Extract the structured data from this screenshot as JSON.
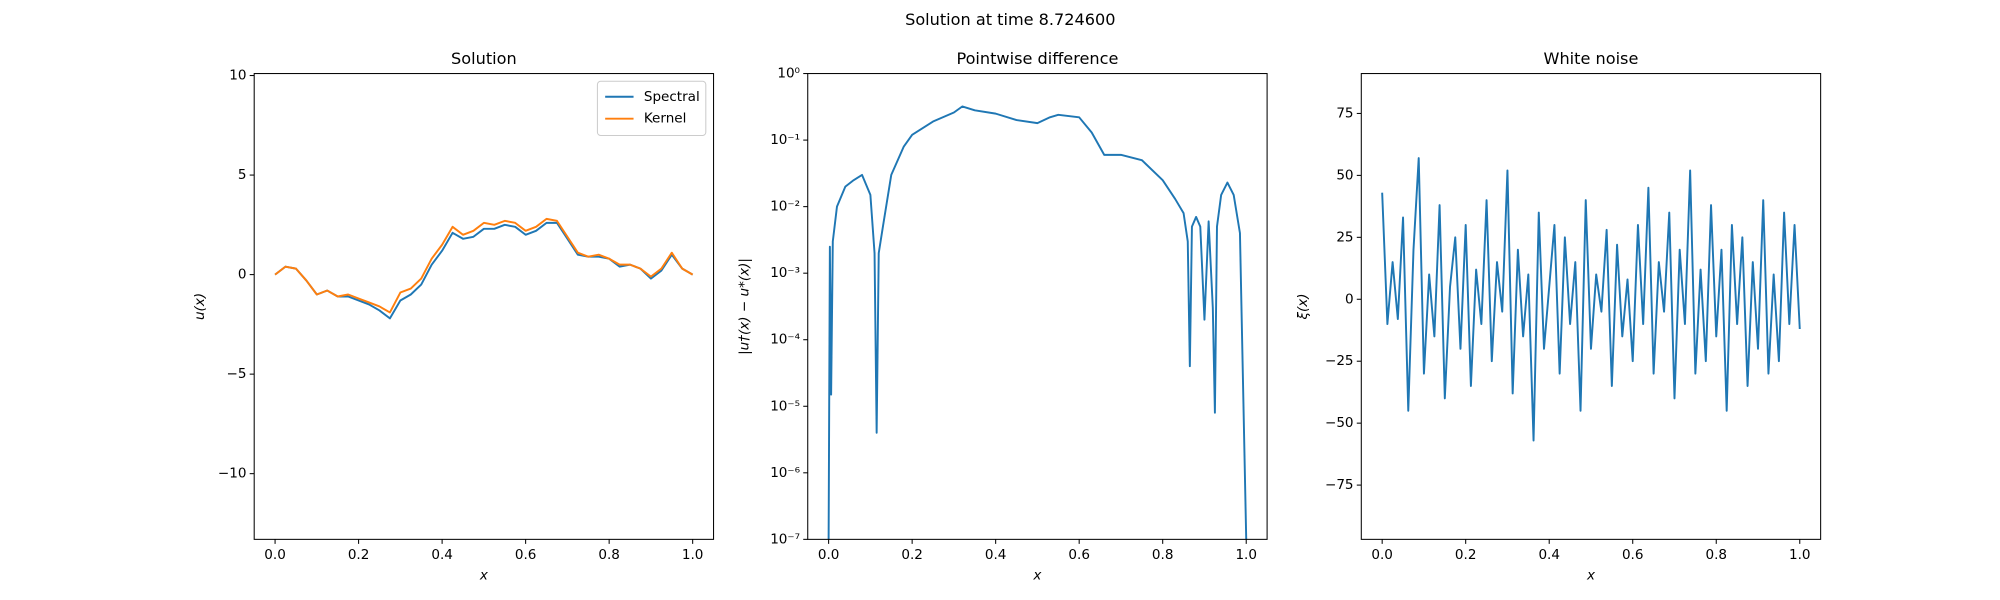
{
  "title": "Solution at time 8.724600",
  "chart_data": [
    {
      "type": "line",
      "title": "Solution",
      "xlabel": "x",
      "ylabel": "u(x)",
      "x": [
        0,
        0.025,
        0.05,
        0.075,
        0.1,
        0.125,
        0.15,
        0.175,
        0.2,
        0.225,
        0.25,
        0.275,
        0.3,
        0.325,
        0.35,
        0.375,
        0.4,
        0.425,
        0.45,
        0.475,
        0.5,
        0.525,
        0.55,
        0.575,
        0.6,
        0.625,
        0.65,
        0.675,
        0.7,
        0.725,
        0.75,
        0.775,
        0.8,
        0.825,
        0.85,
        0.875,
        0.9,
        0.925,
        0.95,
        0.975,
        1
      ],
      "series": [
        {
          "name": "Spectral",
          "color": "#1f77b4",
          "values": [
            0,
            0.4,
            0.3,
            -0.3,
            -1.0,
            -0.8,
            -1.1,
            -1.1,
            -1.3,
            -1.5,
            -1.8,
            -2.2,
            -1.3,
            -1.0,
            -0.5,
            0.5,
            1.2,
            2.1,
            1.8,
            1.9,
            2.3,
            2.3,
            2.5,
            2.4,
            2.0,
            2.2,
            2.6,
            2.6,
            1.8,
            1.0,
            0.9,
            0.9,
            0.8,
            0.4,
            0.5,
            0.3,
            -0.2,
            0.2,
            1.0,
            0.3,
            0
          ]
        },
        {
          "name": "Kernel",
          "color": "#ff7f0e",
          "values": [
            0,
            0.4,
            0.3,
            -0.3,
            -1.0,
            -0.8,
            -1.1,
            -1.0,
            -1.2,
            -1.4,
            -1.6,
            -1.9,
            -0.9,
            -0.7,
            -0.2,
            0.8,
            1.5,
            2.4,
            2.0,
            2.2,
            2.6,
            2.5,
            2.7,
            2.6,
            2.2,
            2.4,
            2.8,
            2.7,
            1.9,
            1.1,
            0.9,
            1.0,
            0.8,
            0.5,
            0.5,
            0.3,
            -0.1,
            0.3,
            1.1,
            0.3,
            0
          ]
        }
      ],
      "xlim": [
        -0.05,
        1.05
      ],
      "ylim": [
        -13.3,
        10.1
      ],
      "xticks": [
        {
          "value": 0,
          "label": "0.0"
        },
        {
          "value": 0.2,
          "label": "0.2"
        },
        {
          "value": 0.4,
          "label": "0.4"
        },
        {
          "value": 0.6,
          "label": "0.6"
        },
        {
          "value": 0.8,
          "label": "0.8"
        },
        {
          "value": 1,
          "label": "1.0"
        }
      ],
      "yticks": [
        {
          "value": -10,
          "label": "−10"
        },
        {
          "value": -5,
          "label": "−5"
        },
        0,
        5,
        10
      ],
      "legend": "upper right"
    },
    {
      "type": "line",
      "title": "Pointwise difference",
      "xlabel": "x",
      "ylabel": "|u†(x) − u*(x)|",
      "yscale": "log",
      "x": [
        0,
        0.003,
        0.006,
        0.01,
        0.02,
        0.04,
        0.06,
        0.08,
        0.1,
        0.11,
        0.115,
        0.12,
        0.13,
        0.15,
        0.18,
        0.2,
        0.25,
        0.3,
        0.32,
        0.35,
        0.4,
        0.45,
        0.5,
        0.53,
        0.55,
        0.6,
        0.63,
        0.66,
        0.7,
        0.75,
        0.8,
        0.83,
        0.85,
        0.86,
        0.865,
        0.87,
        0.88,
        0.89,
        0.9,
        0.91,
        0.92,
        0.925,
        0.93,
        0.94,
        0.955,
        0.97,
        0.985,
        1
      ],
      "series": [
        {
          "color": "#1f77b4",
          "values": [
            1e-07,
            0.0025,
            1.5e-05,
            0.003,
            0.01,
            0.02,
            0.025,
            0.03,
            0.015,
            0.002,
            4e-06,
            0.002,
            0.005,
            0.03,
            0.08,
            0.12,
            0.19,
            0.26,
            0.32,
            0.28,
            0.25,
            0.2,
            0.18,
            0.22,
            0.24,
            0.22,
            0.13,
            0.06,
            0.06,
            0.05,
            0.025,
            0.013,
            0.008,
            0.003,
            4e-05,
            0.005,
            0.007,
            0.005,
            0.0002,
            0.006,
            0.0003,
            8e-06,
            0.005,
            0.015,
            0.023,
            0.015,
            0.004,
            1e-07
          ]
        }
      ],
      "xlim": [
        -0.05,
        1.05
      ],
      "ylim": [
        1e-07,
        1
      ],
      "xticks": [
        {
          "value": 0,
          "label": "0.0"
        },
        {
          "value": 0.2,
          "label": "0.2"
        },
        {
          "value": 0.4,
          "label": "0.4"
        },
        {
          "value": 0.6,
          "label": "0.6"
        },
        {
          "value": 0.8,
          "label": "0.8"
        },
        {
          "value": 1,
          "label": "1.0"
        }
      ],
      "yticks": [
        {
          "value": 1e-07,
          "label": "10⁻⁷"
        },
        {
          "value": 1e-06,
          "label": "10⁻⁶"
        },
        {
          "value": 1e-05,
          "label": "10⁻⁵"
        },
        {
          "value": 0.0001,
          "label": "10⁻⁴"
        },
        {
          "value": 0.001,
          "label": "10⁻³"
        },
        {
          "value": 0.01,
          "label": "10⁻²"
        },
        {
          "value": 0.1,
          "label": "10⁻¹"
        },
        {
          "value": 1,
          "label": "10⁰"
        }
      ]
    },
    {
      "type": "line",
      "title": "White noise",
      "xlabel": "x",
      "ylabel": "ξ(x)",
      "x": [
        0,
        0.0125,
        0.025,
        0.0375,
        0.05,
        0.0625,
        0.075,
        0.0875,
        0.1,
        0.1125,
        0.125,
        0.1375,
        0.15,
        0.1625,
        0.175,
        0.1875,
        0.2,
        0.2125,
        0.225,
        0.2375,
        0.25,
        0.2625,
        0.275,
        0.2875,
        0.3,
        0.3125,
        0.325,
        0.3375,
        0.35,
        0.3625,
        0.375,
        0.3875,
        0.4,
        0.4125,
        0.425,
        0.4375,
        0.45,
        0.4625,
        0.475,
        0.4875,
        0.5,
        0.5125,
        0.525,
        0.5375,
        0.55,
        0.5625,
        0.575,
        0.5875,
        0.6,
        0.6125,
        0.625,
        0.6375,
        0.65,
        0.6625,
        0.675,
        0.6875,
        0.7,
        0.7125,
        0.725,
        0.7375,
        0.75,
        0.7625,
        0.775,
        0.7875,
        0.8,
        0.8125,
        0.825,
        0.8375,
        0.85,
        0.8625,
        0.875,
        0.8875,
        0.9,
        0.9125,
        0.925,
        0.9375,
        0.95,
        0.9625,
        0.975,
        0.9875,
        1
      ],
      "series": [
        {
          "color": "#1f77b4",
          "values": [
            43,
            -10,
            15,
            -8,
            33,
            -45,
            20,
            57,
            -30,
            10,
            -15,
            38,
            -40,
            5,
            25,
            -20,
            30,
            -35,
            12,
            -10,
            40,
            -25,
            15,
            -5,
            52,
            -38,
            20,
            -15,
            10,
            -57,
            35,
            -20,
            5,
            30,
            -30,
            25,
            -10,
            15,
            -45,
            40,
            -20,
            10,
            -5,
            28,
            -35,
            22,
            -15,
            8,
            -25,
            30,
            -10,
            45,
            -30,
            15,
            -5,
            35,
            -40,
            20,
            -10,
            52,
            -30,
            12,
            -25,
            38,
            -15,
            20,
            -45,
            30,
            -10,
            25,
            -35,
            15,
            -20,
            40,
            -30,
            10,
            -25,
            35,
            -10,
            30,
            -12
          ]
        }
      ],
      "xlim": [
        -0.05,
        1.05
      ],
      "ylim": [
        -96.9,
        91.1
      ],
      "xticks": [
        {
          "value": 0,
          "label": "0.0"
        },
        {
          "value": 0.2,
          "label": "0.2"
        },
        {
          "value": 0.4,
          "label": "0.4"
        },
        {
          "value": 0.6,
          "label": "0.6"
        },
        {
          "value": 0.8,
          "label": "0.8"
        },
        {
          "value": 1,
          "label": "1.0"
        }
      ],
      "yticks": [
        {
          "value": -75,
          "label": "−75"
        },
        {
          "value": -50,
          "label": "−50"
        },
        {
          "value": -25,
          "label": "−25"
        },
        0,
        25,
        50,
        75
      ]
    }
  ]
}
